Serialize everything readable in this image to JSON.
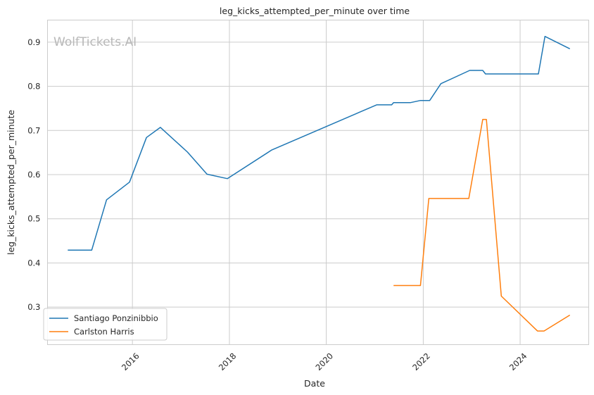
{
  "chart_data": {
    "type": "line",
    "title": "leg_kicks_attempted_per_minute over time",
    "xlabel": "Date",
    "ylabel": "leg_kicks_attempted_per_minute",
    "watermark": "WolfTickets.AI",
    "xlim": [
      "2014-04-01",
      "2025-06-01"
    ],
    "ylim": [
      0.215,
      0.95
    ],
    "x_ticks": [
      "2016",
      "2018",
      "2020",
      "2022",
      "2024"
    ],
    "y_ticks": [
      "0.3",
      "0.4",
      "0.5",
      "0.6",
      "0.7",
      "0.8",
      "0.9"
    ],
    "grid": true,
    "legend_position": "lower-left",
    "series": [
      {
        "name": "Santiago Ponzinibbio",
        "color": "#1f77b4",
        "x": [
          "2014-09-01",
          "2015-02-28",
          "2015-06-20",
          "2015-12-10",
          "2016-04-16",
          "2016-07-30",
          "2017-02-19",
          "2017-07-16",
          "2017-12-16",
          "2018-11-17",
          "2021-01-15",
          "2021-05-08",
          "2021-05-22",
          "2021-09-25",
          "2021-12-11",
          "2022-02-19",
          "2022-05-14",
          "2022-12-17",
          "2023-03-25",
          "2023-04-15",
          "2024-05-18",
          "2024-07-06",
          "2025-01-10"
        ],
        "y": [
          0.429,
          0.429,
          0.543,
          0.583,
          0.684,
          0.707,
          0.651,
          0.601,
          0.591,
          0.656,
          0.758,
          0.758,
          0.763,
          0.763,
          0.768,
          0.768,
          0.806,
          0.836,
          0.836,
          0.828,
          0.828,
          0.913,
          0.885
        ]
      },
      {
        "name": "Carlston Harris",
        "color": "#ff7f0e",
        "x": [
          "2021-05-22",
          "2021-12-11",
          "2022-02-12",
          "2022-12-10",
          "2023-03-25",
          "2023-04-22",
          "2023-08-12",
          "2024-05-11",
          "2024-06-29",
          "2025-01-10"
        ],
        "y": [
          0.349,
          0.349,
          0.546,
          0.546,
          0.725,
          0.725,
          0.325,
          0.246,
          0.246,
          0.282
        ]
      }
    ]
  }
}
